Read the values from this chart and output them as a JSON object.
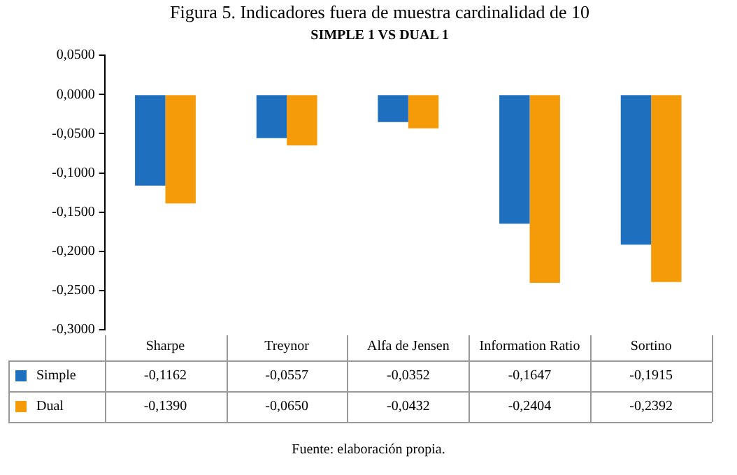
{
  "chart_data": {
    "type": "bar",
    "title": "Figura 5. Indicadores fuera de muestra cardinalidad de 10",
    "subtitle": "SIMPLE 1 VS DUAL 1",
    "categories": [
      "Sharpe",
      "Treynor",
      "Alfa de Jensen",
      "Information Ratio",
      "Sortino"
    ],
    "series": [
      {
        "name": "Simple",
        "color": "#1f6fbf",
        "values": [
          -0.1162,
          -0.0557,
          -0.0352,
          -0.1647,
          -0.1915
        ],
        "value_labels": [
          "-0,1162",
          "-0,0557",
          "-0,0352",
          "-0,1647",
          "-0,1915"
        ]
      },
      {
        "name": "Dual",
        "color": "#f59b0a",
        "values": [
          -0.139,
          -0.065,
          -0.0432,
          -0.2404,
          -0.2392
        ],
        "value_labels": [
          "-0,1390",
          "-0,0650",
          "-0,0432",
          "-0,2404",
          "-0,2392"
        ]
      }
    ],
    "ylim": [
      -0.3,
      0.05
    ],
    "yticks": [
      {
        "value": 0.05,
        "label": "0,0500"
      },
      {
        "value": 0,
        "label": "0,0000"
      },
      {
        "value": -0.05,
        "label": "-0,0500"
      },
      {
        "value": -0.1,
        "label": "-0,1000"
      },
      {
        "value": -0.15,
        "label": "-0,1500"
      },
      {
        "value": -0.2,
        "label": "-0,2000"
      },
      {
        "value": -0.25,
        "label": "-0,2500"
      },
      {
        "value": -0.3,
        "label": "-0,3000"
      }
    ],
    "grid": false,
    "legend": "bottom",
    "annotations": [
      "Fuente: elaboración propia."
    ]
  }
}
